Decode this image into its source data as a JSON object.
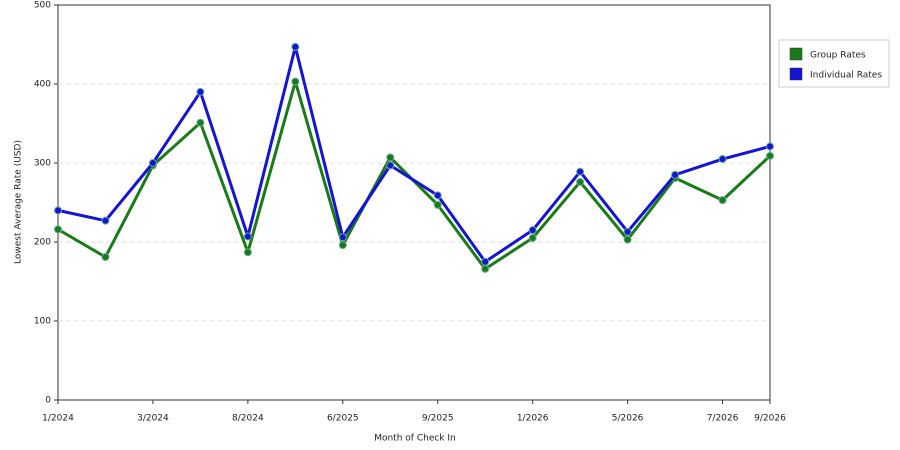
{
  "chart_data": {
    "type": "line",
    "x_label": "Month of Check In",
    "y_label": "Lowest Average Rate (USD)",
    "categories": [
      "1/2024",
      null,
      "3/2024",
      null,
      "8/2024",
      null,
      "6/2025",
      null,
      "9/2025",
      null,
      "1/2026",
      null,
      "5/2026",
      null,
      "7/2026",
      "9/2026"
    ],
    "series": [
      {
        "name": "Group Rates",
        "color": "#1a7a1a",
        "values": [
          216,
          181,
          297,
          351,
          187,
          403,
          196,
          307,
          247,
          166,
          205,
          276,
          203,
          281,
          253,
          309
        ]
      },
      {
        "name": "Individual Rates",
        "color": "#1414d2",
        "values": [
          240,
          227,
          300,
          390,
          207,
          447,
          206,
          297,
          259,
          175,
          215,
          289,
          213,
          285,
          305,
          321
        ]
      }
    ],
    "ylim": [
      0,
      500
    ],
    "yticks": [
      0,
      100,
      200,
      300,
      400,
      500
    ],
    "grid": true
  }
}
